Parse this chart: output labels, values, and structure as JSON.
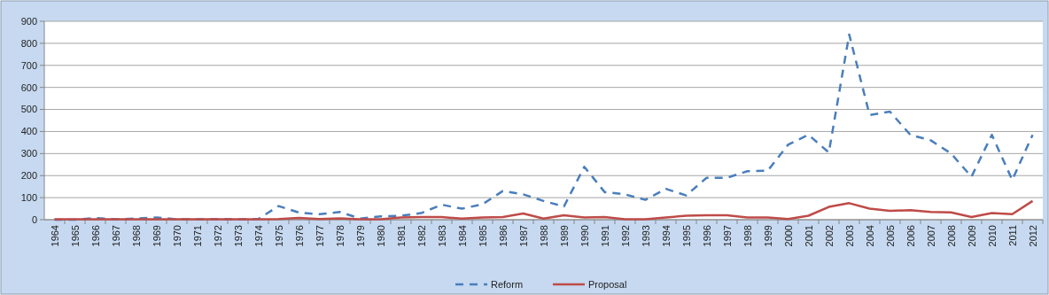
{
  "chart_data": {
    "type": "line",
    "categories": [
      "1964",
      "1965",
      "1966",
      "1967",
      "1968",
      "1969",
      "1970",
      "1971",
      "1972",
      "1973",
      "1974",
      "1975",
      "1976",
      "1977",
      "1978",
      "1979",
      "1980",
      "1981",
      "1982",
      "1983",
      "1984",
      "1985",
      "1986",
      "1987",
      "1988",
      "1989",
      "1990",
      "1991",
      "1992",
      "1993",
      "1994",
      "1995",
      "1996",
      "1997",
      "1998",
      "1999",
      "2000",
      "2001",
      "2002",
      "2003",
      "2004",
      "2005",
      "2006",
      "2007",
      "2008",
      "2009",
      "2010",
      "2011",
      "2012"
    ],
    "series": [
      {
        "name": "Reform",
        "color": "#4a7ebb",
        "line_style": "dashed",
        "values": [
          0,
          0,
          8,
          2,
          5,
          10,
          2,
          2,
          3,
          2,
          3,
          62,
          32,
          25,
          35,
          5,
          15,
          18,
          30,
          68,
          50,
          70,
          130,
          115,
          85,
          60,
          240,
          125,
          115,
          90,
          140,
          110,
          190,
          190,
          220,
          222,
          340,
          385,
          305,
          840,
          475,
          490,
          385,
          360,
          300,
          195,
          385,
          180,
          385
        ]
      },
      {
        "name": "Proposal",
        "color": "#be4b48",
        "line_style": "solid",
        "values": [
          2,
          2,
          2,
          2,
          2,
          2,
          2,
          2,
          2,
          2,
          2,
          3,
          8,
          3,
          6,
          2,
          2,
          10,
          12,
          12,
          5,
          10,
          12,
          28,
          5,
          20,
          10,
          12,
          2,
          2,
          10,
          18,
          20,
          20,
          10,
          10,
          3,
          18,
          58,
          75,
          50,
          40,
          43,
          35,
          33,
          12,
          30,
          25,
          85
        ]
      }
    ],
    "ylim": [
      0,
      900
    ],
    "yticks": [
      0,
      100,
      200,
      300,
      400,
      500,
      600,
      700,
      800,
      900
    ],
    "grid": "y",
    "legend": "bottom",
    "marker": "none"
  }
}
